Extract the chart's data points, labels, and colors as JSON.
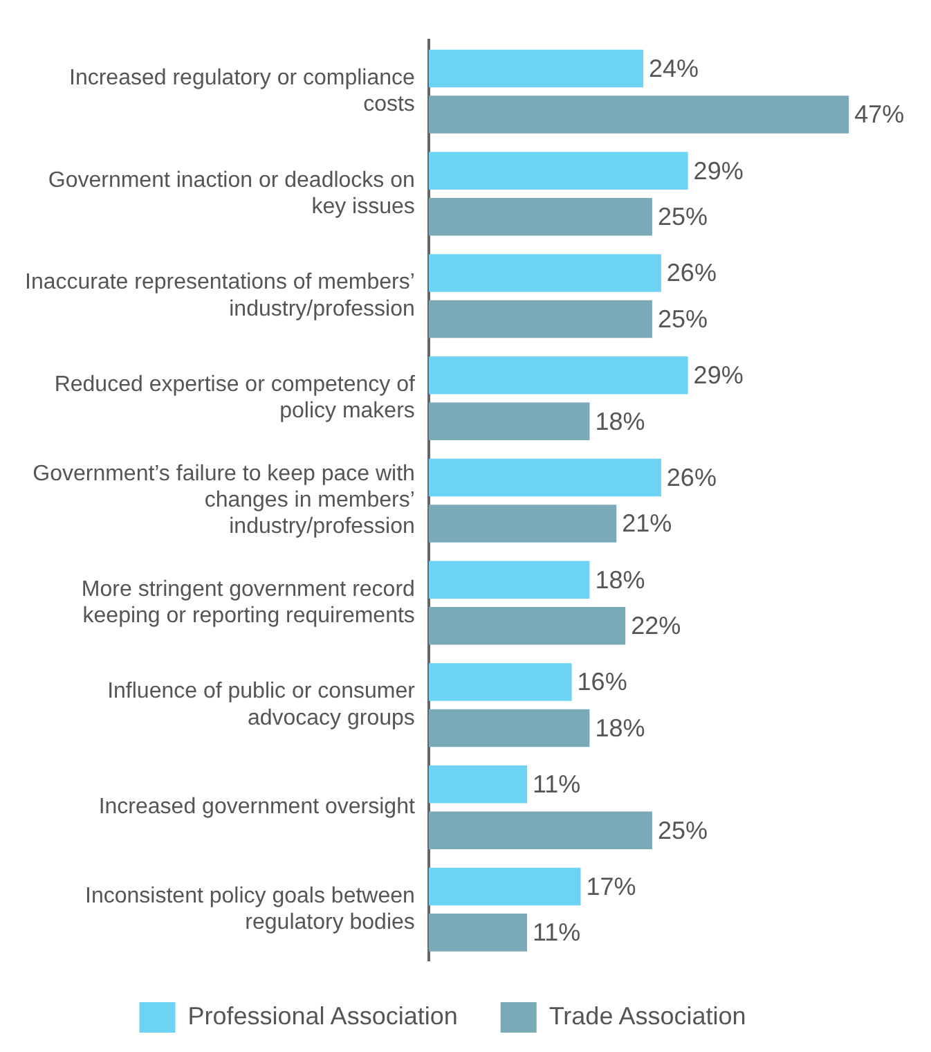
{
  "chart_data": {
    "type": "bar",
    "orientation": "horizontal",
    "tick_labels": "y",
    "legend": "bottom",
    "grid": false,
    "categories": [
      "Increased regulatory or compliance costs",
      "Government inaction or deadlocks on key issues",
      "Inaccurate representations of members’ industry/profession",
      "Reduced expertise or competency of policy makers",
      "Government’s failure to keep pace with changes in members’ industry/profession",
      "More stringent government record keeping or reporting requirements",
      "Influence of public or consumer advocacy groups",
      "Increased government oversight",
      "Inconsistent policy goals between regulatory bodies"
    ],
    "series": [
      {
        "name": "Professional Association",
        "color": "#6dd3f5",
        "values": [
          24,
          29,
          26,
          29,
          26,
          18,
          16,
          11,
          17
        ],
        "value_labels": [
          "24%",
          "29%",
          "26%",
          "29%",
          "26%",
          "18%",
          "16%",
          "11%",
          "17%"
        ]
      },
      {
        "name": "Trade Association",
        "color": "#7aa9b8",
        "values": [
          47,
          25,
          25,
          18,
          21,
          22,
          18,
          25,
          11
        ],
        "value_labels": [
          "47%",
          "25%",
          "25%",
          "18%",
          "21%",
          "22%",
          "18%",
          "25%",
          "11%"
        ]
      }
    ]
  }
}
